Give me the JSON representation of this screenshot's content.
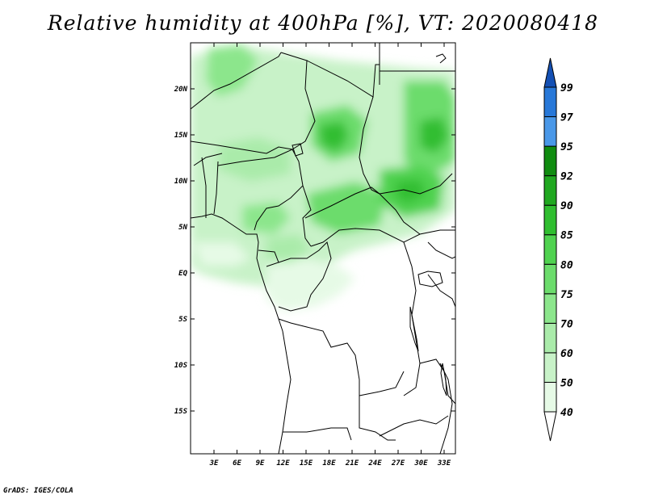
{
  "title": "Relative humidity at 400hPa [%], VT: 2020080418",
  "credit": "GrADS: IGES/COLA",
  "map": {
    "lat_labels": [
      "20N",
      "15N",
      "10N",
      "5N",
      "EQ",
      "5S",
      "10S",
      "15S"
    ],
    "lon_labels": [
      "3E",
      "6E",
      "9E",
      "12E",
      "15E",
      "18E",
      "21E",
      "24E",
      "27E",
      "30E",
      "33E"
    ]
  },
  "colorbar": {
    "levels": [
      "40",
      "50",
      "60",
      "70",
      "75",
      "80",
      "85",
      "90",
      "92",
      "95",
      "97",
      "99"
    ],
    "colors": [
      "#ffffff",
      "#e6fae6",
      "#c8f2c8",
      "#aaebaa",
      "#8ce68c",
      "#6cdc6c",
      "#50d250",
      "#30be30",
      "#20a820",
      "#108c10",
      "#4a98e8",
      "#2878d8",
      "#1450b4"
    ]
  }
}
